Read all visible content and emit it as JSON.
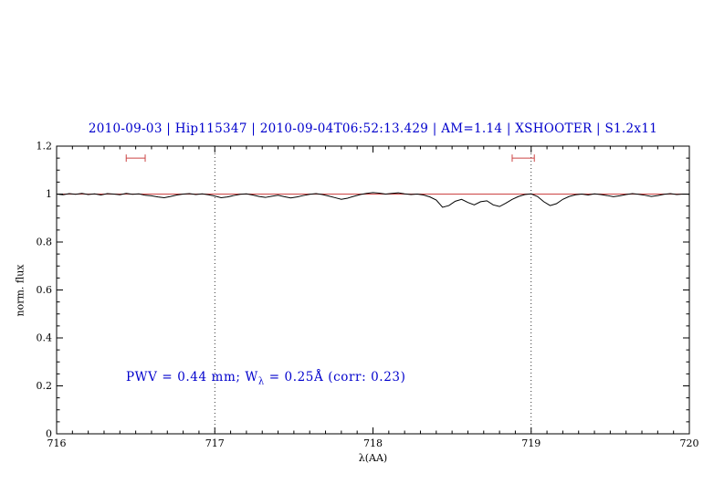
{
  "title": {
    "text": "2010-09-03 | Hip115347 | 2010-09-04T06:52:13.429 | AM=1.14 | XSHOOTER | S1.2x11",
    "color": "#0000cc"
  },
  "annotation": {
    "prefix": "PWV = 0.44 mm; W",
    "sub": "λ",
    "suffix": " = 0.25Å (corr: 0.23)",
    "color": "#0000cc"
  },
  "axes": {
    "xlabel": "λ(AA)",
    "ylabel": "norm. flux",
    "xlim": [
      716,
      720
    ],
    "ylim": [
      0,
      1.2
    ],
    "xticks": [
      716,
      717,
      718,
      719,
      720
    ],
    "xtick_labels": [
      "716",
      "717",
      "718",
      "719",
      "720"
    ],
    "yticks": [
      0,
      0.2,
      0.4,
      0.6,
      0.8,
      1,
      1.2
    ],
    "ytick_labels": [
      "0",
      "0.2",
      "0.4",
      "0.6",
      "0.8",
      "1",
      "1.2"
    ],
    "x_minor_step": 0.1,
    "y_minor_step": 0.05,
    "dotted_lines_x": [
      717,
      719
    ]
  },
  "colors": {
    "spectrum": "#000000",
    "continuum": "#cc4444",
    "marker": "#cc4444",
    "frame": "#000000",
    "text_blue": "#0000cc"
  },
  "chart_data": {
    "type": "line",
    "title": "2010-09-03 | Hip115347 | 2010-09-04T06:52:13.429 | AM=1.14 | XSHOOTER | S1.2x11",
    "xlabel": "λ(AA)",
    "ylabel": "norm. flux",
    "xlim": [
      716,
      720
    ],
    "ylim": [
      0,
      1.2
    ],
    "grid": "dotted vertical lines at x=717 and x=719",
    "legend": "none",
    "continuum_y": 1.0,
    "markers": [
      {
        "x_center": 716.5,
        "half_width": 0.06,
        "y": 1.15
      },
      {
        "x_center": 718.95,
        "half_width": 0.07,
        "y": 1.15
      }
    ],
    "series": [
      {
        "name": "normalized spectrum",
        "x_start": 716.0,
        "x_step": 0.04,
        "values": [
          1.0,
          0.997,
          1.002,
          0.999,
          1.003,
          0.998,
          1.001,
          0.996,
          1.002,
          1.0,
          0.997,
          1.003,
          0.999,
          1.001,
          0.995,
          0.993,
          0.988,
          0.985,
          0.99,
          0.996,
          1.0,
          1.002,
          0.998,
          1.001,
          0.997,
          0.992,
          0.985,
          0.988,
          0.994,
          0.999,
          1.001,
          0.996,
          0.99,
          0.986,
          0.991,
          0.995,
          0.989,
          0.984,
          0.988,
          0.994,
          0.999,
          1.002,
          0.998,
          0.992,
          0.985,
          0.978,
          0.983,
          0.991,
          0.998,
          1.003,
          1.006,
          1.004,
          1.0,
          1.003,
          1.005,
          1.001,
          0.998,
          1.0,
          0.996,
          0.988,
          0.975,
          0.945,
          0.952,
          0.97,
          0.978,
          0.965,
          0.955,
          0.968,
          0.972,
          0.955,
          0.948,
          0.962,
          0.978,
          0.99,
          0.998,
          1.001,
          0.99,
          0.968,
          0.952,
          0.96,
          0.978,
          0.99,
          0.997,
          1.0,
          0.996,
          1.001,
          0.998,
          0.994,
          0.989,
          0.993,
          0.998,
          1.002,
          0.999,
          0.995,
          0.99,
          0.994,
          0.999,
          1.002,
          0.998,
          1.0,
          0.999
        ]
      }
    ]
  }
}
